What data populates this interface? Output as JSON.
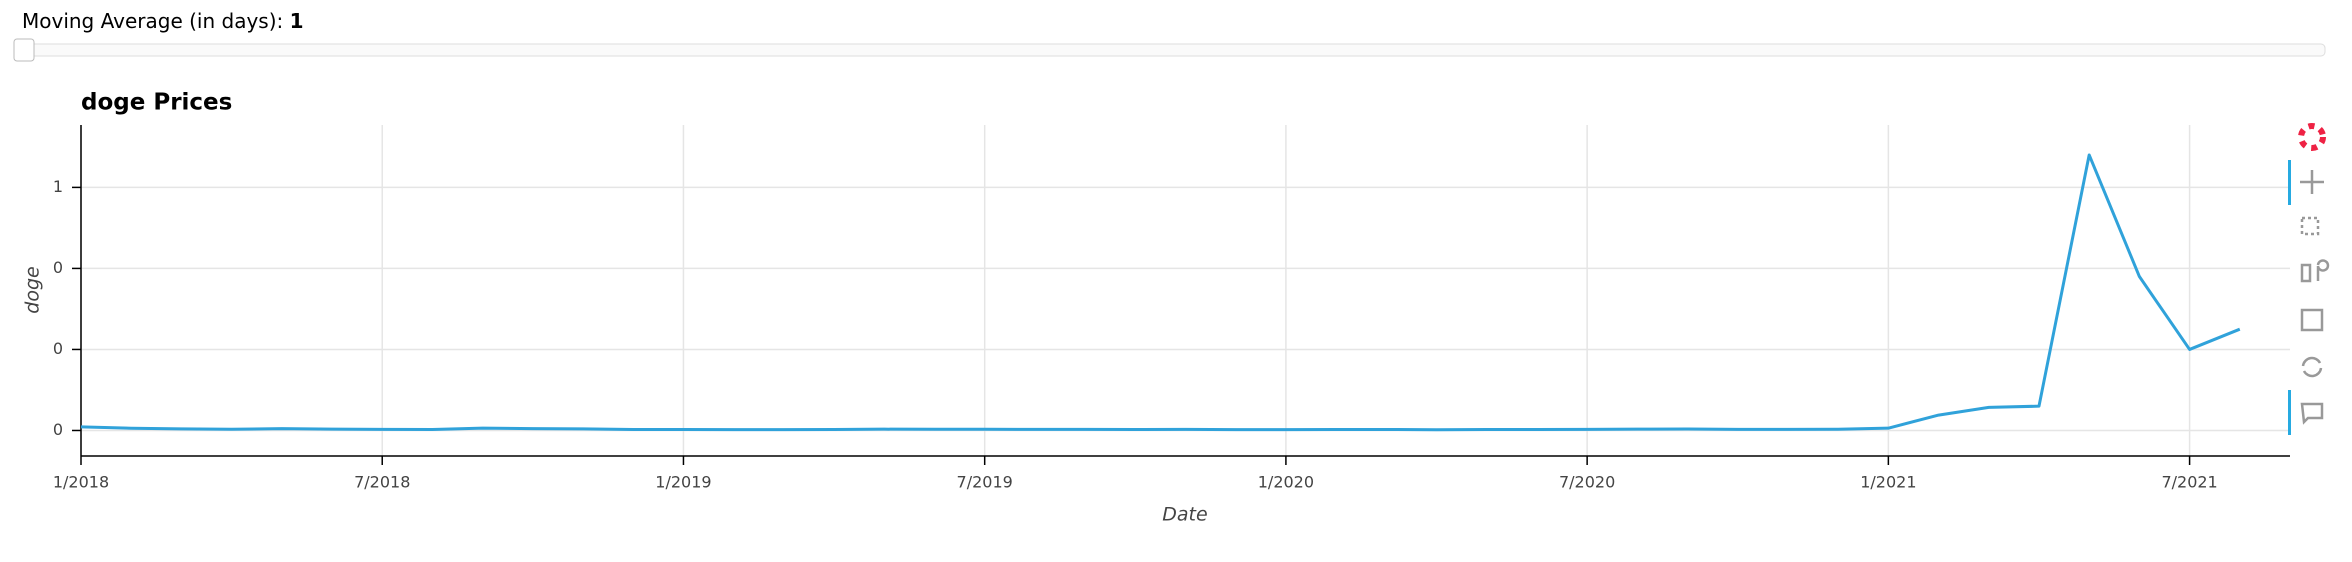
{
  "slider": {
    "title": "Moving Average (in days): ",
    "value": 1
  },
  "chart_data": {
    "type": "line",
    "title": "doge Prices",
    "x_label": "Date",
    "y_label": "doge",
    "x": [
      "2018-01",
      "2018-02",
      "2018-03",
      "2018-04",
      "2018-05",
      "2018-06",
      "2018-07",
      "2018-08",
      "2018-09",
      "2018-10",
      "2018-11",
      "2018-12",
      "2019-01",
      "2019-02",
      "2019-03",
      "2019-04",
      "2019-05",
      "2019-06",
      "2019-07",
      "2019-08",
      "2019-09",
      "2019-10",
      "2019-11",
      "2019-12",
      "2020-01",
      "2020-02",
      "2020-03",
      "2020-04",
      "2020-05",
      "2020-06",
      "2020-07",
      "2020-08",
      "2020-09",
      "2020-10",
      "2020-11",
      "2020-12",
      "2021-01",
      "2021-02",
      "2021-03",
      "2021-04",
      "2021-05",
      "2021-06",
      "2021-07",
      "2021-08"
    ],
    "series": [
      {
        "name": "doge",
        "color": "#30a2da",
        "values": [
          0.009,
          0.0055,
          0.004,
          0.003,
          0.0045,
          0.0032,
          0.0028,
          0.0025,
          0.0058,
          0.0047,
          0.004,
          0.0025,
          0.0023,
          0.002,
          0.002,
          0.0025,
          0.0032,
          0.003,
          0.0031,
          0.0027,
          0.0026,
          0.0025,
          0.0027,
          0.0022,
          0.002,
          0.0023,
          0.0025,
          0.0018,
          0.0025,
          0.0025,
          0.0026,
          0.0032,
          0.0035,
          0.0026,
          0.0026,
          0.0031,
          0.0057,
          0.038,
          0.057,
          0.06,
          0.68,
          0.38,
          0.2,
          0.25
        ]
      }
    ],
    "xlim": [
      "2018-01",
      "2021-09"
    ],
    "xticks": [
      {
        "value": "2018-01",
        "label": "1/2018"
      },
      {
        "value": "2018-07",
        "label": "7/2018"
      },
      {
        "value": "2019-01",
        "label": "1/2019"
      },
      {
        "value": "2019-07",
        "label": "7/2019"
      },
      {
        "value": "2020-01",
        "label": "1/2020"
      },
      {
        "value": "2020-07",
        "label": "7/2020"
      },
      {
        "value": "2021-01",
        "label": "1/2021"
      },
      {
        "value": "2021-07",
        "label": "7/2021"
      }
    ],
    "ylim": [
      -0.063,
      0.754
    ],
    "yticks": [
      0,
      {
        "value": 0.2,
        "label": "0"
      },
      {
        "value": 0.4,
        "label": "0"
      },
      {
        "value": 0.6,
        "label": "1"
      }
    ],
    "grid": true
  }
}
